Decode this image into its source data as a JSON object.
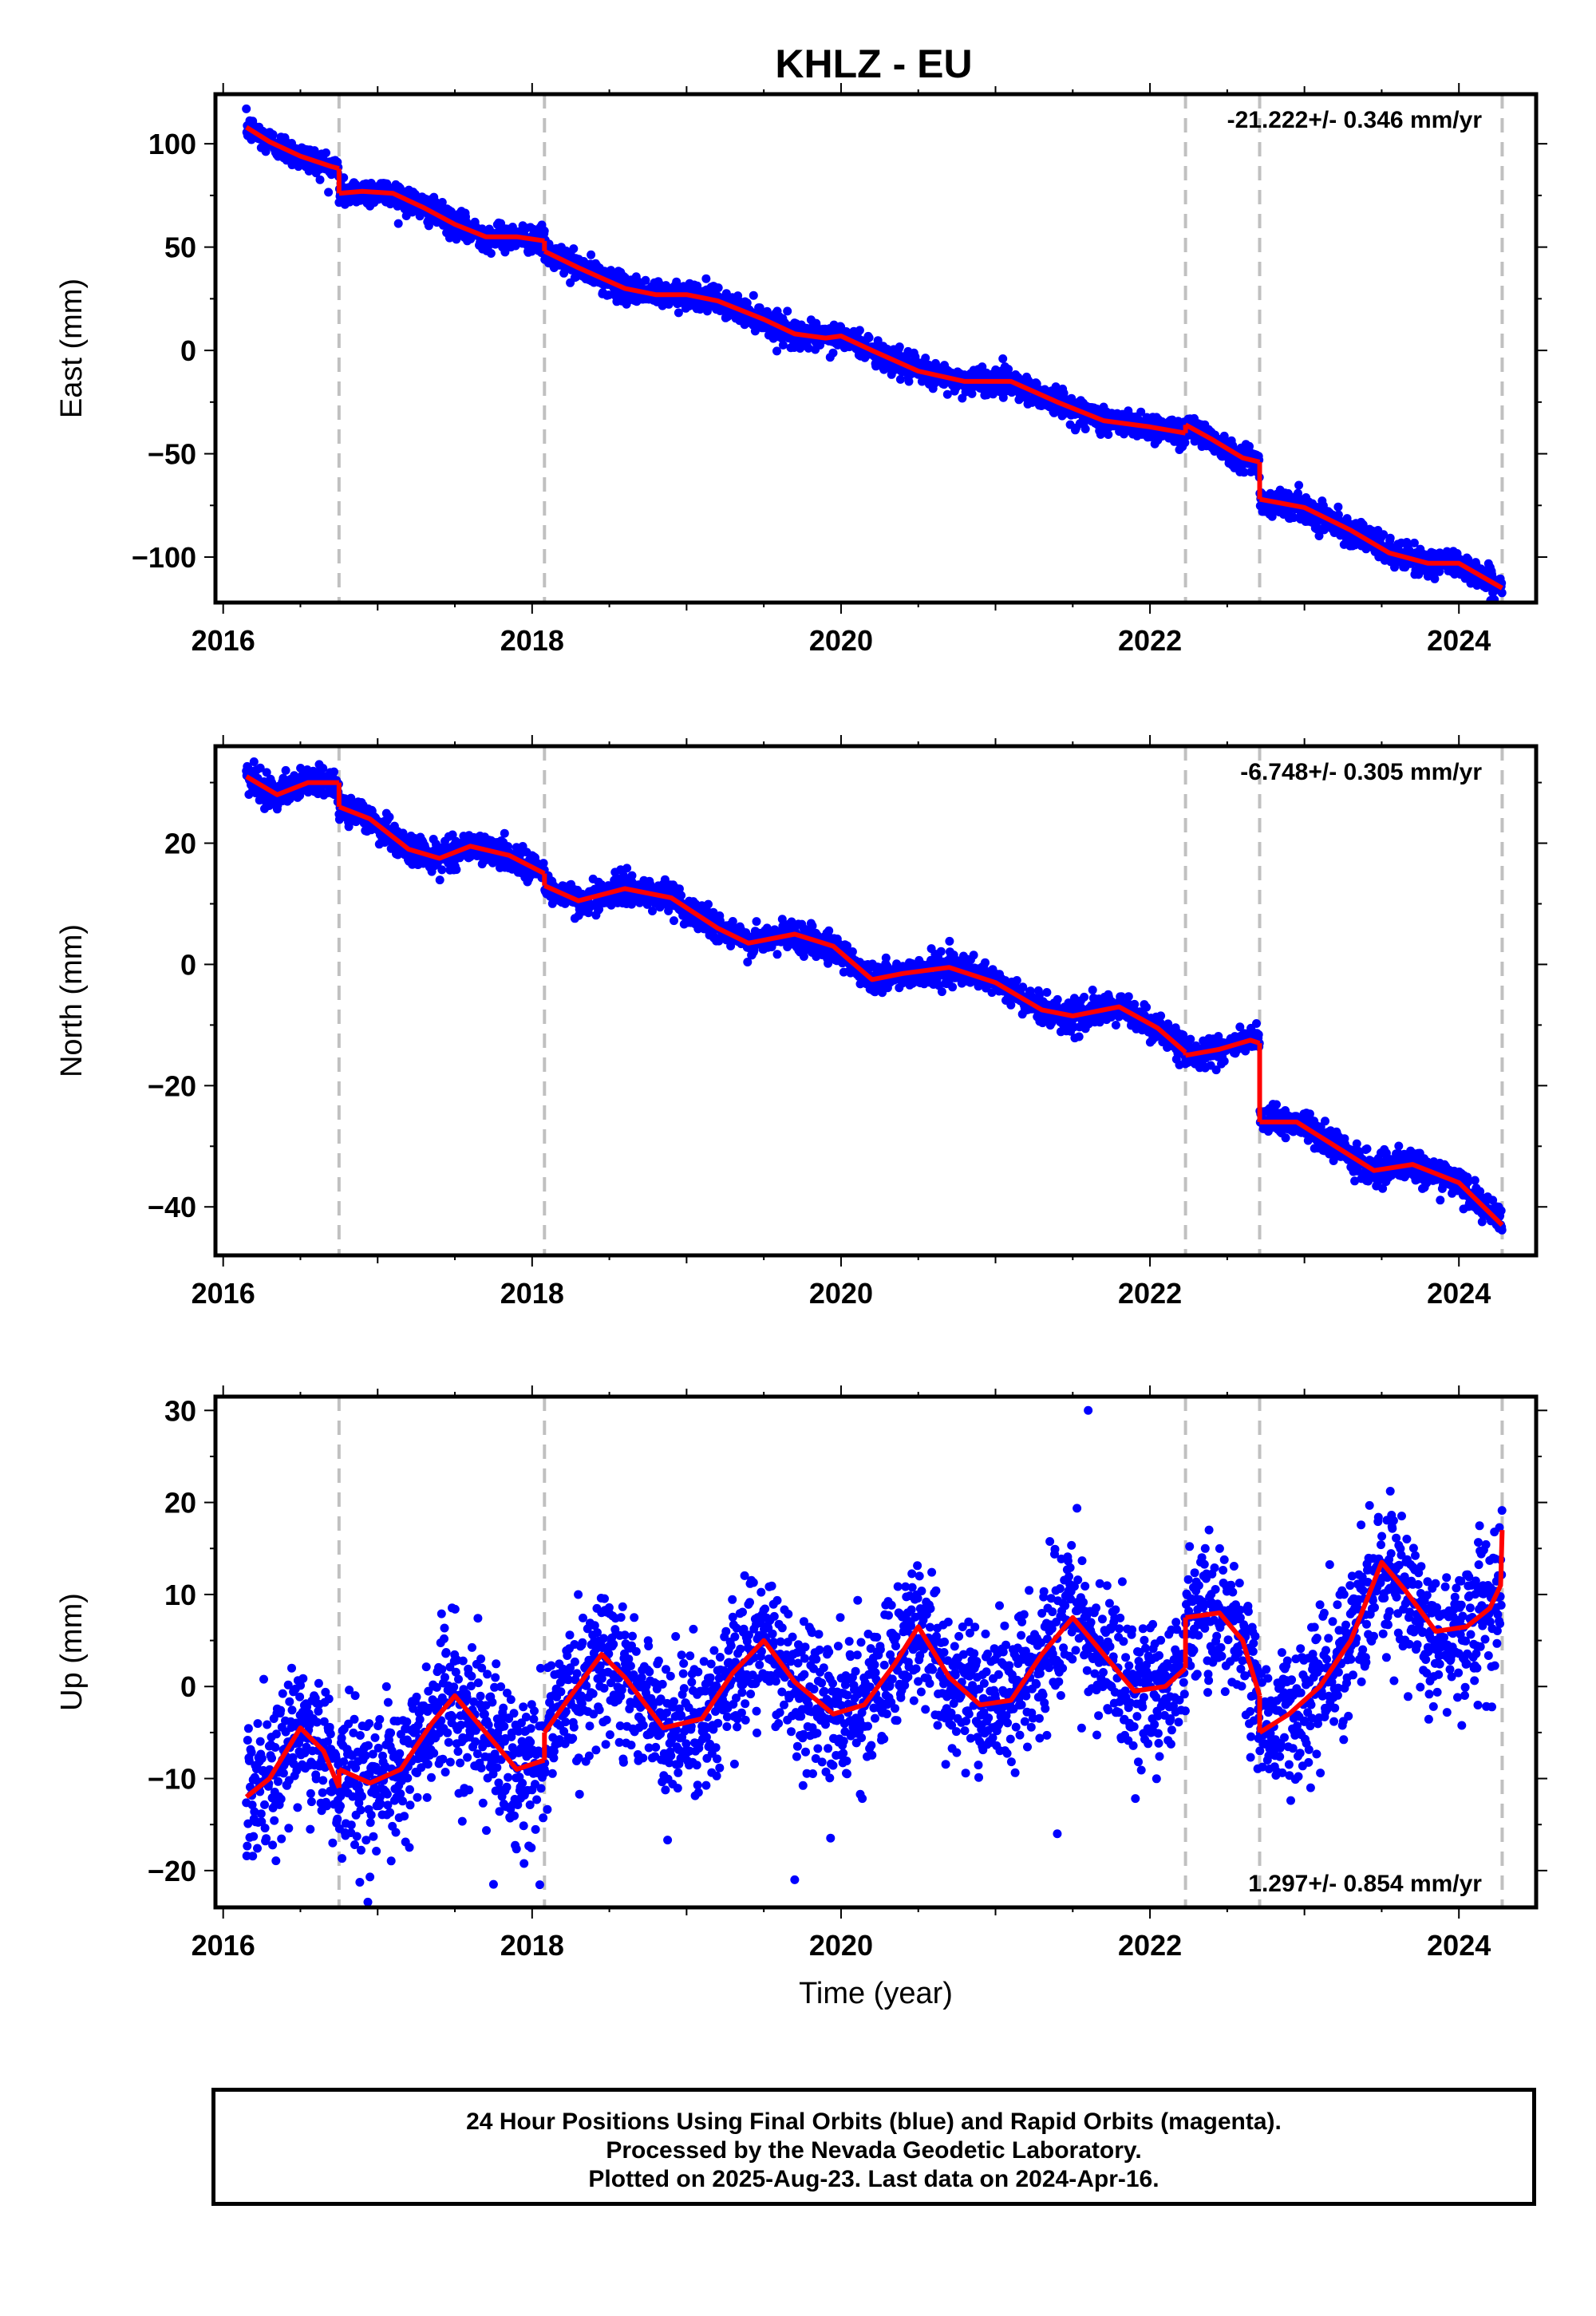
{
  "title": "KHLZ - EU",
  "footer": {
    "line1": "24 Hour Positions Using Final Orbits (blue) and Rapid Orbits (magenta).",
    "line2": "Processed by the Nevada Geodetic Laboratory.",
    "line3": "Plotted on 2025-Aug-23. Last data on 2024-Apr-16."
  },
  "colors": {
    "points": "#0000ff",
    "model": "#ff0000",
    "breaks": "#c0c0c0",
    "frame": "#000000"
  },
  "chart_data": [
    {
      "type": "scatter",
      "panel": "east",
      "ylabel": "East (mm)",
      "xlabel": "",
      "rate_label": "-21.222+/- 0.346 mm/yr",
      "rate_position": "top-right",
      "xlim": [
        2015.95,
        2024.5
      ],
      "ylim": [
        -122,
        124
      ],
      "xticks": [
        2016,
        2018,
        2020,
        2022,
        2024
      ],
      "yticks": [
        -100,
        -50,
        0,
        50,
        100
      ],
      "break_lines": [
        2016.75,
        2018.08,
        2022.23,
        2022.71,
        2024.28
      ],
      "data_span": [
        2016.15,
        2024.29
      ],
      "series": [
        {
          "role": "model",
          "segments": [
            [
              [
                2016.15,
                108
              ],
              [
                2016.3,
                101
              ],
              [
                2016.5,
                94
              ],
              [
                2016.7,
                89
              ],
              [
                2016.75,
                88
              ]
            ],
            [
              [
                2016.75,
                76
              ],
              [
                2016.9,
                77
              ],
              [
                2017.1,
                76
              ],
              [
                2017.3,
                69
              ],
              [
                2017.5,
                61
              ],
              [
                2017.7,
                55
              ],
              [
                2017.9,
                55
              ],
              [
                2018.08,
                53
              ]
            ],
            [
              [
                2018.08,
                48
              ],
              [
                2018.3,
                40
              ],
              [
                2018.6,
                30
              ],
              [
                2018.8,
                27
              ],
              [
                2019.0,
                27
              ],
              [
                2019.2,
                24
              ],
              [
                2019.5,
                15
              ],
              [
                2019.7,
                8
              ],
              [
                2019.9,
                6
              ],
              [
                2020.0,
                7
              ],
              [
                2020.2,
                0
              ],
              [
                2020.5,
                -10
              ],
              [
                2020.8,
                -15
              ],
              [
                2021.1,
                -15
              ],
              [
                2021.4,
                -25
              ],
              [
                2021.7,
                -34
              ],
              [
                2022.0,
                -37
              ],
              [
                2022.23,
                -40
              ]
            ],
            [
              [
                2022.23,
                -36
              ],
              [
                2022.4,
                -43
              ],
              [
                2022.6,
                -52
              ],
              [
                2022.71,
                -54
              ]
            ],
            [
              [
                2022.71,
                -72
              ],
              [
                2023.0,
                -76
              ],
              [
                2023.3,
                -87
              ],
              [
                2023.55,
                -98
              ],
              [
                2023.8,
                -103
              ],
              [
                2024.0,
                -103
              ],
              [
                2024.28,
                -115
              ]
            ]
          ]
        },
        {
          "role": "observations",
          "scatter": 3.2,
          "density_per_year": 365
        }
      ]
    },
    {
      "type": "scatter",
      "panel": "north",
      "ylabel": "North (mm)",
      "xlabel": "",
      "rate_label": "-6.748+/- 0.305 mm/yr",
      "rate_position": "top-right",
      "xlim": [
        2015.95,
        2024.5
      ],
      "ylim": [
        -48,
        36
      ],
      "xticks": [
        2016,
        2018,
        2020,
        2022,
        2024
      ],
      "yticks": [
        -40,
        -20,
        0,
        20
      ],
      "break_lines": [
        2016.75,
        2018.08,
        2022.23,
        2022.71,
        2024.28
      ],
      "data_span": [
        2016.15,
        2024.29
      ],
      "series": [
        {
          "role": "model",
          "segments": [
            [
              [
                2016.15,
                31
              ],
              [
                2016.35,
                28
              ],
              [
                2016.55,
                30
              ],
              [
                2016.75,
                30
              ]
            ],
            [
              [
                2016.75,
                26
              ],
              [
                2016.95,
                24
              ],
              [
                2017.2,
                19
              ],
              [
                2017.4,
                17.5
              ],
              [
                2017.6,
                19.5
              ],
              [
                2017.85,
                18
              ],
              [
                2018.08,
                15
              ]
            ],
            [
              [
                2018.08,
                13
              ],
              [
                2018.3,
                10.5
              ],
              [
                2018.6,
                12.5
              ],
              [
                2018.9,
                11
              ],
              [
                2019.2,
                6
              ],
              [
                2019.4,
                3.5
              ],
              [
                2019.7,
                5
              ],
              [
                2019.95,
                3
              ],
              [
                2020.2,
                -2.5
              ],
              [
                2020.4,
                -1.5
              ],
              [
                2020.7,
                -0.5
              ],
              [
                2021.0,
                -3
              ],
              [
                2021.3,
                -7.5
              ],
              [
                2021.5,
                -8.5
              ],
              [
                2021.8,
                -7
              ],
              [
                2022.05,
                -10.5
              ],
              [
                2022.23,
                -14.5
              ]
            ],
            [
              [
                2022.23,
                -15
              ],
              [
                2022.45,
                -14
              ],
              [
                2022.65,
                -12.5
              ],
              [
                2022.71,
                -13
              ]
            ],
            [
              [
                2022.71,
                -26
              ],
              [
                2022.95,
                -26
              ],
              [
                2023.2,
                -30
              ],
              [
                2023.45,
                -34
              ],
              [
                2023.7,
                -33
              ],
              [
                2024.0,
                -36
              ],
              [
                2024.28,
                -43
              ]
            ]
          ]
        },
        {
          "role": "observations",
          "scatter": 1.2,
          "density_per_year": 365
        }
      ]
    },
    {
      "type": "scatter",
      "panel": "up",
      "ylabel": "Up (mm)",
      "xlabel": "Time (year)",
      "rate_label": "1.297+/- 0.854 mm/yr",
      "rate_position": "bottom-right",
      "xlim": [
        2015.95,
        2024.5
      ],
      "ylim": [
        -24,
        31.5
      ],
      "xticks": [
        2016,
        2018,
        2020,
        2022,
        2024
      ],
      "yticks": [
        -20,
        -10,
        0,
        10,
        20,
        30
      ],
      "break_lines": [
        2016.75,
        2018.08,
        2022.23,
        2022.71,
        2024.28
      ],
      "data_span": [
        2016.15,
        2024.29
      ],
      "series": [
        {
          "role": "model",
          "segments": [
            [
              [
                2016.15,
                -12
              ],
              [
                2016.3,
                -10
              ],
              [
                2016.5,
                -4.5
              ],
              [
                2016.65,
                -7
              ],
              [
                2016.75,
                -11
              ]
            ],
            [
              [
                2016.75,
                -9
              ],
              [
                2016.95,
                -10.5
              ],
              [
                2017.15,
                -9
              ],
              [
                2017.35,
                -4
              ],
              [
                2017.5,
                -1
              ],
              [
                2017.7,
                -5
              ],
              [
                2017.9,
                -9
              ],
              [
                2018.08,
                -8
              ]
            ],
            [
              [
                2018.08,
                -5
              ],
              [
                2018.25,
                -1
              ],
              [
                2018.45,
                3.5
              ],
              [
                2018.6,
                1
              ],
              [
                2018.85,
                -4.5
              ],
              [
                2019.1,
                -3.5
              ],
              [
                2019.3,
                1.5
              ],
              [
                2019.5,
                5
              ],
              [
                2019.7,
                0.5
              ],
              [
                2019.95,
                -3
              ],
              [
                2020.15,
                -2
              ],
              [
                2020.35,
                2.5
              ],
              [
                2020.5,
                6.5
              ],
              [
                2020.7,
                1
              ],
              [
                2020.9,
                -2
              ],
              [
                2021.1,
                -1.5
              ],
              [
                2021.3,
                3.5
              ],
              [
                2021.5,
                7.5
              ],
              [
                2021.7,
                3.5
              ],
              [
                2021.9,
                -0.5
              ],
              [
                2022.1,
                0
              ],
              [
                2022.23,
                2
              ]
            ],
            [
              [
                2022.23,
                7.5
              ],
              [
                2022.45,
                8
              ],
              [
                2022.6,
                5
              ],
              [
                2022.71,
                -1
              ]
            ],
            [
              [
                2022.71,
                -5
              ],
              [
                2022.9,
                -3
              ],
              [
                2023.1,
                0
              ],
              [
                2023.3,
                5
              ],
              [
                2023.5,
                13.5
              ],
              [
                2023.65,
                10.5
              ],
              [
                2023.85,
                6
              ],
              [
                2024.05,
                6.5
              ],
              [
                2024.2,
                8.5
              ],
              [
                2024.27,
                11
              ],
              [
                2024.28,
                17
              ]
            ]
          ]
        },
        {
          "role": "observations",
          "scatter": 3.8,
          "density_per_year": 365,
          "outliers": [
            [
              2021.6,
              30
            ],
            [
              2019.7,
              -21
            ],
            [
              2021.4,
              -16
            ],
            [
              2017.75,
              -21.5
            ]
          ]
        }
      ]
    }
  ]
}
